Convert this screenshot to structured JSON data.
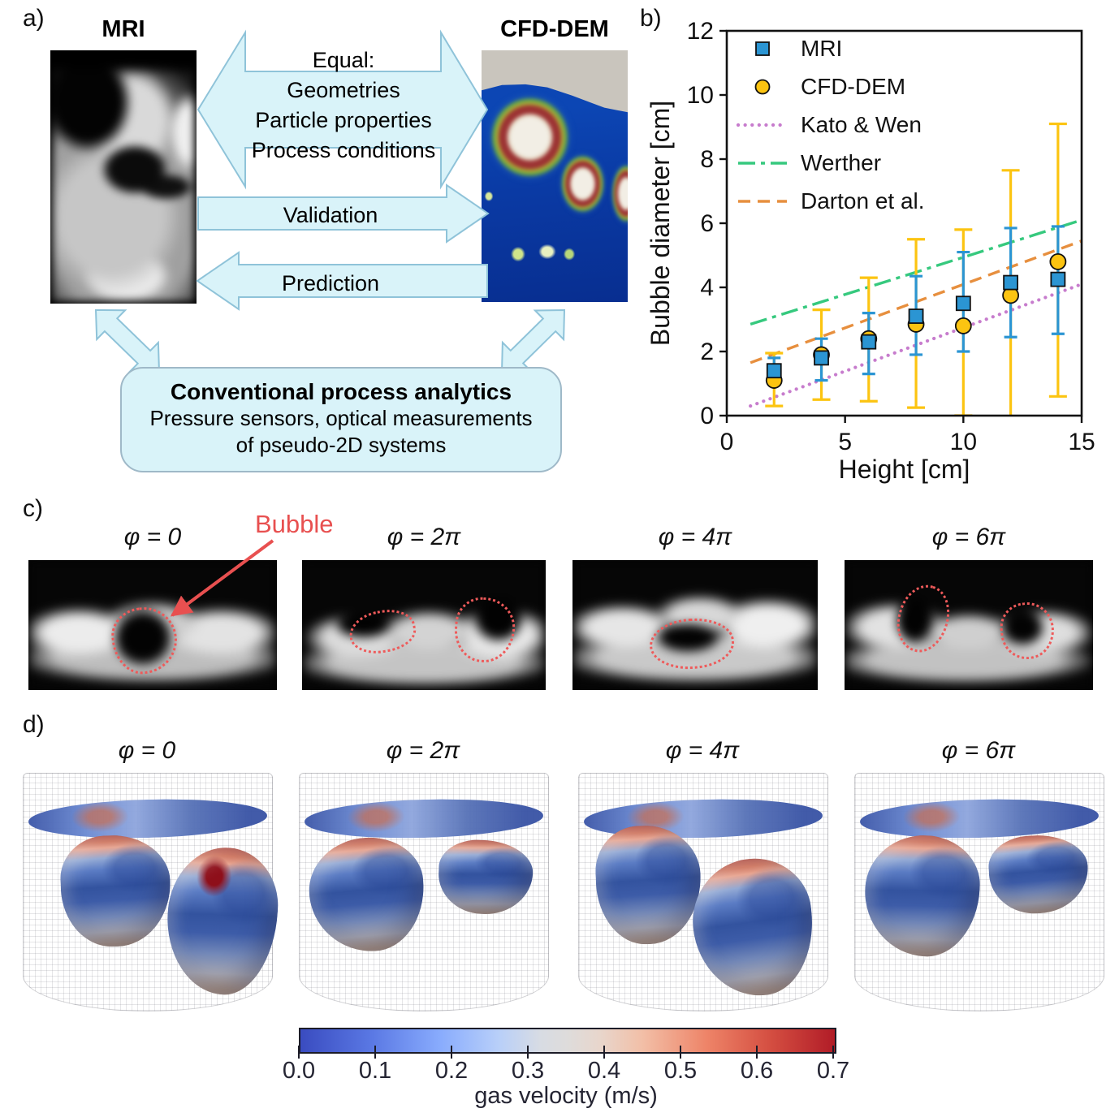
{
  "figure": {
    "panel_a": {
      "label": "a)",
      "mri_title": "MRI",
      "cfd_title": "CFD-DEM",
      "equal_arrow_lines": [
        "Equal:",
        "Geometries",
        "Particle properties",
        "Process conditions"
      ],
      "validation_label": "Validation",
      "prediction_label": "Prediction",
      "analytics_box": {
        "title": "Conventional process analytics",
        "line1": "Pressure sensors, optical measurements",
        "line2": "of pseudo-2D systems"
      }
    },
    "panel_b": {
      "label": "b)"
    },
    "panel_c": {
      "label": "c)",
      "bubble_annotation": "Bubble",
      "phase_labels": [
        "φ = 0",
        "φ = 2π",
        "φ = 4π",
        "φ = 6π"
      ]
    },
    "panel_d": {
      "label": "d)",
      "phase_labels": [
        "φ = 0",
        "φ = 2π",
        "φ = 4π",
        "φ = 6π"
      ],
      "colorbar": {
        "label": "gas velocity (m/s)",
        "ticks": [
          "0.0",
          "0.1",
          "0.2",
          "0.3",
          "0.4",
          "0.5",
          "0.6",
          "0.7"
        ],
        "min_color": "#3a4cc0",
        "max_color": "#b11c27"
      }
    }
  },
  "chart_data": {
    "type": "scatter",
    "title": "",
    "xlabel": "Height [cm]",
    "ylabel": "Bubble diameter [cm]",
    "xlim": [
      0,
      15
    ],
    "ylim": [
      0,
      12
    ],
    "xticks": [
      0,
      5,
      10,
      15
    ],
    "yticks": [
      0,
      2,
      4,
      6,
      8,
      10,
      12
    ],
    "grid": false,
    "legend_position": "upper-left",
    "series": [
      {
        "name": "MRI",
        "type": "scatter",
        "marker": "square",
        "color": "#2b95d3",
        "x": [
          2,
          4,
          6,
          8,
          10,
          12,
          14
        ],
        "y": [
          1.4,
          1.8,
          2.3,
          3.1,
          3.5,
          4.15,
          4.25
        ],
        "err_low": [
          1.0,
          1.1,
          1.3,
          1.9,
          2.0,
          2.45,
          2.55
        ],
        "err_high": [
          1.8,
          2.4,
          3.2,
          4.35,
          5.1,
          5.85,
          5.9
        ]
      },
      {
        "name": "CFD-DEM",
        "type": "scatter",
        "marker": "circle",
        "color": "#fcc411",
        "x": [
          2,
          4,
          6,
          8,
          10,
          12,
          14
        ],
        "y": [
          1.1,
          1.9,
          2.4,
          2.85,
          2.8,
          3.75,
          4.8
        ],
        "err_low": [
          0.3,
          0.5,
          0.45,
          0.25,
          0.0,
          -0.3,
          0.6
        ],
        "err_high": [
          1.95,
          3.3,
          4.3,
          5.5,
          5.8,
          7.65,
          9.1
        ]
      },
      {
        "name": "Kato & Wen",
        "type": "line",
        "style": "dotted",
        "color": "#c77ccd",
        "x": [
          1,
          15
        ],
        "y": [
          0.3,
          4.1
        ]
      },
      {
        "name": "Werther",
        "type": "line",
        "style": "dashdot",
        "color": "#36c97e",
        "x": [
          1,
          15
        ],
        "y": [
          2.85,
          6.1
        ]
      },
      {
        "name": "Darton et al.",
        "type": "line",
        "style": "dashed",
        "color": "#e78f3e",
        "x": [
          1,
          15
        ],
        "y": [
          1.65,
          5.45
        ]
      }
    ]
  }
}
